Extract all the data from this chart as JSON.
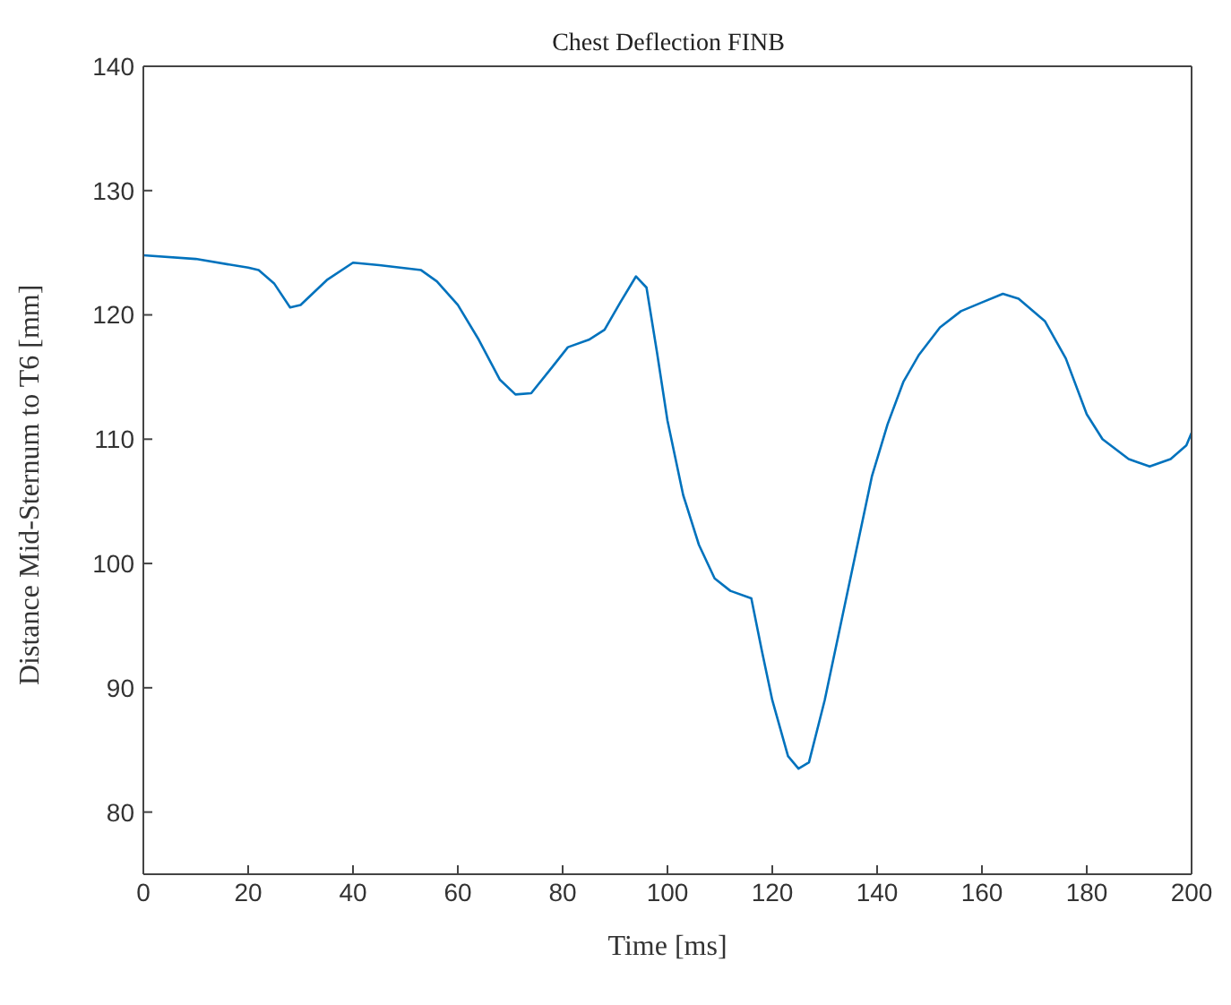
{
  "chart_data": {
    "type": "line",
    "title": "Chest Deflection FINB",
    "xlabel": "Time [ms]",
    "ylabel": "Distance Mid-Sternum to T6 [mm]",
    "xlim": [
      0,
      200
    ],
    "xticks": [
      0,
      20,
      40,
      60,
      80,
      100,
      120,
      140,
      160,
      180,
      200
    ],
    "ylim": [
      75,
      140
    ],
    "yticks": [
      80,
      90,
      100,
      110,
      120,
      130,
      140
    ],
    "legend": false,
    "marker": "none",
    "line_style": "solid",
    "series": [
      {
        "color": "#0072bd",
        "x": [
          0,
          10,
          20,
          22,
          25,
          28,
          30,
          35,
          40,
          45,
          53,
          56,
          60,
          64,
          68,
          71,
          74,
          78,
          81,
          85,
          88,
          91,
          94,
          96,
          98,
          100,
          103,
          106,
          109,
          112,
          116,
          118,
          120,
          123,
          125,
          127,
          130,
          133,
          136,
          139,
          142,
          145,
          148,
          152,
          156,
          160,
          164,
          167,
          172,
          176,
          180,
          183,
          188,
          192,
          196,
          199,
          200
        ],
        "values": [
          124.8,
          124.5,
          123.8,
          123.6,
          122.5,
          120.6,
          120.8,
          122.8,
          124.2,
          124,
          123.6,
          122.7,
          120.8,
          118,
          114.8,
          113.6,
          113.7,
          115.8,
          117.4,
          118,
          118.8,
          121,
          123.1,
          122.2,
          117,
          111.5,
          105.5,
          101.5,
          98.8,
          97.8,
          97.2,
          93,
          89,
          84.5,
          83.5,
          84,
          89,
          95,
          101,
          107,
          111.2,
          114.6,
          116.8,
          119,
          120.3,
          121,
          121.7,
          121.3,
          119.5,
          116.5,
          112,
          110,
          108.4,
          107.8,
          108.4,
          109.5,
          110.5
        ]
      }
    ]
  }
}
